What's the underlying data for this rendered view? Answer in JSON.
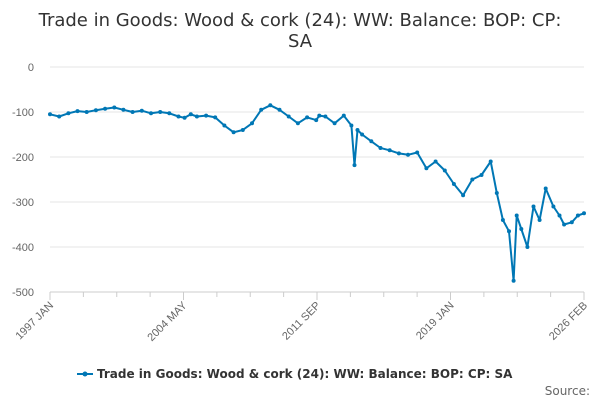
{
  "chart_data": {
    "type": "line",
    "title_line1": "Trade in Goods: Wood & cork (24): WW: Balance: BOP: CP:",
    "title_line2": "SA",
    "xlabel": "",
    "ylabel": "",
    "x_tick_labels": [
      "1997 JAN",
      "2004 MAY",
      "2011 SEP",
      "2019 JAN",
      "2026 FEB"
    ],
    "x_range": [
      "1997-01",
      "2026-02"
    ],
    "y_ticks": [
      0,
      -100,
      -200,
      -300,
      -400,
      -500
    ],
    "ylim": [
      -500,
      0
    ],
    "grid": true,
    "legend_position": "bottom",
    "source_label": "Source:",
    "line_color": "#0077b5",
    "series": [
      {
        "name": "Trade in Goods: Wood & cork (24): WW: Balance: BOP: CP: SA",
        "points": [
          [
            "1997-01",
            -105
          ],
          [
            "1997-07",
            -110
          ],
          [
            "1998-01",
            -103
          ],
          [
            "1998-07",
            -98
          ],
          [
            "1999-01",
            -100
          ],
          [
            "1999-07",
            -96
          ],
          [
            "2000-01",
            -93
          ],
          [
            "2000-07",
            -90
          ],
          [
            "2001-01",
            -95
          ],
          [
            "2001-07",
            -100
          ],
          [
            "2002-01",
            -97
          ],
          [
            "2002-07",
            -103
          ],
          [
            "2003-01",
            -100
          ],
          [
            "2003-07",
            -103
          ],
          [
            "2004-01",
            -110
          ],
          [
            "2004-05",
            -113
          ],
          [
            "2004-09",
            -105
          ],
          [
            "2005-01",
            -110
          ],
          [
            "2005-07",
            -108
          ],
          [
            "2006-01",
            -112
          ],
          [
            "2006-07",
            -130
          ],
          [
            "2007-01",
            -145
          ],
          [
            "2007-07",
            -140
          ],
          [
            "2008-01",
            -125
          ],
          [
            "2008-07",
            -95
          ],
          [
            "2009-01",
            -85
          ],
          [
            "2009-07",
            -95
          ],
          [
            "2010-01",
            -110
          ],
          [
            "2010-07",
            -125
          ],
          [
            "2011-01",
            -112
          ],
          [
            "2011-07",
            -118
          ],
          [
            "2011-09",
            -108
          ],
          [
            "2012-01",
            -110
          ],
          [
            "2012-07",
            -125
          ],
          [
            "2013-01",
            -108
          ],
          [
            "2013-06",
            -130
          ],
          [
            "2013-08",
            -218
          ],
          [
            "2013-10",
            -140
          ],
          [
            "2014-01",
            -150
          ],
          [
            "2014-07",
            -165
          ],
          [
            "2015-01",
            -180
          ],
          [
            "2015-07",
            -185
          ],
          [
            "2016-01",
            -192
          ],
          [
            "2016-07",
            -195
          ],
          [
            "2017-01",
            -190
          ],
          [
            "2017-07",
            -225
          ],
          [
            "2018-01",
            -210
          ],
          [
            "2018-07",
            -230
          ],
          [
            "2019-01",
            -260
          ],
          [
            "2019-07",
            -285
          ],
          [
            "2020-01",
            -250
          ],
          [
            "2020-07",
            -240
          ],
          [
            "2021-01",
            -210
          ],
          [
            "2021-05",
            -280
          ],
          [
            "2021-09",
            -340
          ],
          [
            "2022-01",
            -365
          ],
          [
            "2022-04",
            -475
          ],
          [
            "2022-06",
            -330
          ],
          [
            "2022-09",
            -360
          ],
          [
            "2023-01",
            -400
          ],
          [
            "2023-05",
            -310
          ],
          [
            "2023-09",
            -340
          ],
          [
            "2024-01",
            -270
          ],
          [
            "2024-06",
            -310
          ],
          [
            "2024-10",
            -330
          ],
          [
            "2025-01",
            -350
          ],
          [
            "2025-06",
            -345
          ],
          [
            "2025-10",
            -330
          ],
          [
            "2026-02",
            -325
          ]
        ]
      }
    ]
  }
}
